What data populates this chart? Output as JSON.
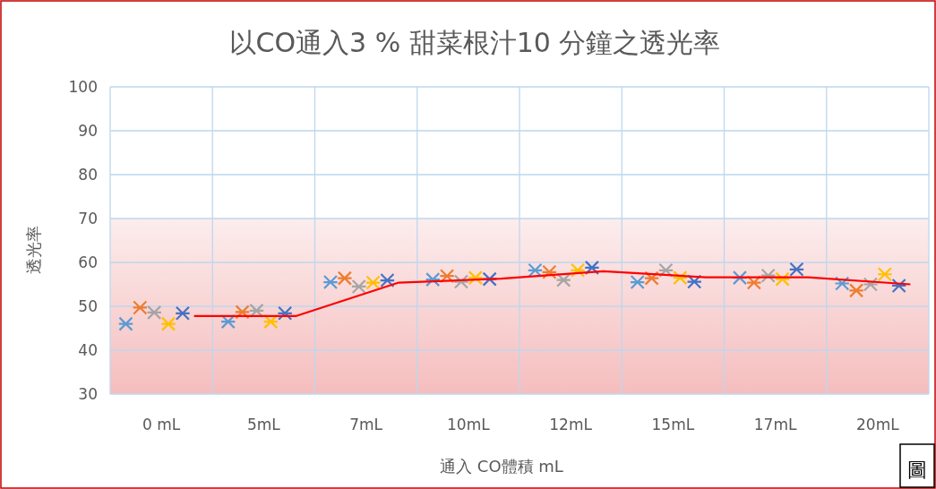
{
  "chart_data": {
    "type": "scatter",
    "title": "以CO通入3 % 甜菜根汁10 分鐘之透光率",
    "xlabel": "通入 CO體積 mL",
    "ylabel": "透光率",
    "categories": [
      "0 mL",
      "5mL",
      "7mL",
      "10mL",
      "12mL",
      "15mL",
      "17mL",
      "20mL"
    ],
    "ylim": [
      30,
      100
    ],
    "yticks": [
      30,
      40,
      50,
      60,
      70,
      80,
      90,
      100
    ],
    "grid": true,
    "marker": "cross",
    "bands": [
      {
        "axis": "y",
        "from": 30,
        "to": 70,
        "color": "#f4b6b6"
      }
    ],
    "series": [
      {
        "color": "#5b9bd5",
        "values": [
          46.0,
          46.5,
          55.5,
          56.1,
          58.2,
          55.5,
          56.5,
          55.2
        ]
      },
      {
        "color": "#ed7d31",
        "values": [
          49.7,
          48.7,
          56.4,
          56.9,
          57.8,
          56.4,
          55.4,
          53.6
        ]
      },
      {
        "color": "#a5a5a5",
        "values": [
          48.6,
          49.0,
          54.5,
          55.6,
          56.0,
          58.2,
          57.0,
          55.0
        ]
      },
      {
        "color": "#ffc000",
        "values": [
          46.0,
          46.5,
          55.4,
          56.5,
          58.2,
          56.5,
          56.2,
          57.3
        ]
      },
      {
        "color": "#4472c4",
        "values": [
          48.4,
          48.4,
          55.9,
          56.2,
          58.8,
          55.6,
          58.4,
          54.7
        ]
      },
      {
        "type": "line",
        "marker": "none",
        "color": "#ff0000",
        "values": [
          47.8,
          47.8,
          55.4,
          56.3,
          58.0,
          56.6,
          56.6,
          55.0
        ]
      }
    ],
    "annotations": [
      "圖"
    ]
  }
}
